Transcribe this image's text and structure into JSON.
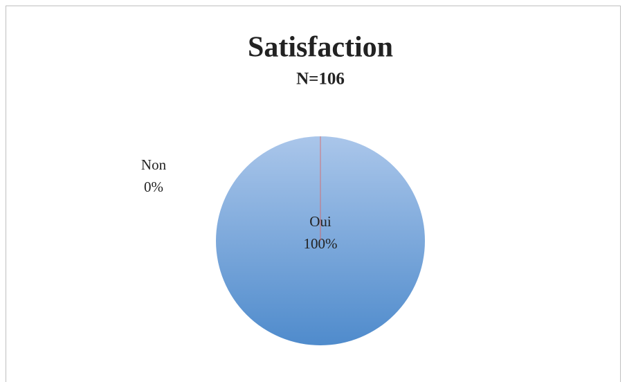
{
  "chart_data": {
    "type": "pie",
    "title": "Satisfaction",
    "subtitle": "N=106",
    "categories": [
      "Oui",
      "Non"
    ],
    "values": [
      100,
      0
    ],
    "value_labels": [
      "100%",
      "0%"
    ],
    "colors": [
      "#6f9fd8",
      "#e0605a"
    ]
  }
}
